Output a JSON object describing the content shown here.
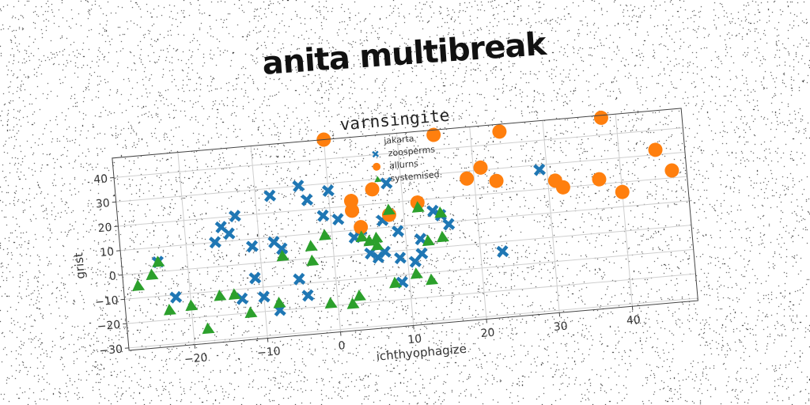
{
  "header": {
    "banner": "anita multibreak"
  },
  "chart_data": {
    "type": "scatter",
    "title": "varnsingite",
    "xlabel": "ichthyophagize",
    "ylabel": "grist",
    "xlim": [
      -29,
      49
    ],
    "ylim": [
      -31,
      48
    ],
    "xticks": [
      -20,
      -10,
      0,
      10,
      20,
      30,
      40
    ],
    "yticks": [
      -30,
      -20,
      -10,
      0,
      10,
      20,
      30,
      40
    ],
    "grid": true,
    "legend": {
      "title": "jakarta",
      "placement": "top-center"
    },
    "series": [
      {
        "name": "zoosperms",
        "marker": "x",
        "color": "#1f77b4",
        "points": [
          [
            -24,
            4
          ],
          [
            -22,
            -11
          ],
          [
            -16,
            10
          ],
          [
            -15,
            16
          ],
          [
            -14,
            13
          ],
          [
            -13,
            20
          ],
          [
            -13,
            -14
          ],
          [
            -11,
            7
          ],
          [
            -11,
            -6
          ],
          [
            -10,
            -14
          ],
          [
            -8,
            27
          ],
          [
            -8,
            8
          ],
          [
            -8,
            -20
          ],
          [
            -7,
            5
          ],
          [
            -5,
            -8
          ],
          [
            -4,
            -15
          ],
          [
            -4,
            30
          ],
          [
            -3,
            24
          ],
          [
            -1,
            17
          ],
          [
            0,
            27
          ],
          [
            1,
            15
          ],
          [
            3,
            7
          ],
          [
            4,
            10
          ],
          [
            5,
            0
          ],
          [
            6,
            -2
          ],
          [
            7,
            13
          ],
          [
            7,
            0
          ],
          [
            8,
            28
          ],
          [
            9,
            8
          ],
          [
            9,
            -13
          ],
          [
            9,
            -3
          ],
          [
            11,
            -5
          ],
          [
            12,
            4
          ],
          [
            12,
            -2
          ],
          [
            14,
            15
          ],
          [
            15,
            13
          ],
          [
            16,
            9
          ],
          [
            23,
            -4
          ],
          [
            29,
            28
          ]
        ]
      },
      {
        "name": "allurns",
        "marker": "o",
        "color": "#ff7f0e",
        "points": [
          [
            0,
            48
          ],
          [
            3,
            22
          ],
          [
            3,
            18
          ],
          [
            4,
            11
          ],
          [
            6,
            26
          ],
          [
            8,
            15
          ],
          [
            12,
            19
          ],
          [
            15,
            46
          ],
          [
            19,
            27
          ],
          [
            21,
            31
          ],
          [
            23,
            25
          ],
          [
            24,
            45
          ],
          [
            31,
            23
          ],
          [
            32,
            20
          ],
          [
            37,
            22
          ],
          [
            38,
            47
          ],
          [
            40,
            16
          ],
          [
            45,
            32
          ],
          [
            47,
            23
          ]
        ]
      },
      {
        "name": "systemised",
        "marker": "^",
        "color": "#2ca02c",
        "points": [
          [
            -27,
            -5
          ],
          [
            -25,
            -1
          ],
          [
            -24,
            4
          ],
          [
            -23,
            -16
          ],
          [
            -20,
            -15
          ],
          [
            -18,
            -25
          ],
          [
            -16,
            -12
          ],
          [
            -14,
            -12
          ],
          [
            -12,
            -20
          ],
          [
            -8,
            -17
          ],
          [
            -7,
            2
          ],
          [
            -3,
            -1
          ],
          [
            -3,
            5
          ],
          [
            -1,
            -19
          ],
          [
            -1,
            9
          ],
          [
            2,
            -20
          ],
          [
            3,
            -17
          ],
          [
            4,
            7
          ],
          [
            5,
            5
          ],
          [
            6,
            6
          ],
          [
            6,
            3
          ],
          [
            8,
            17
          ],
          [
            8,
            -13
          ],
          [
            11,
            -10
          ],
          [
            12,
            17
          ],
          [
            13,
            3
          ],
          [
            13,
            -13
          ],
          [
            15,
            14
          ],
          [
            15,
            4
          ]
        ]
      }
    ]
  }
}
